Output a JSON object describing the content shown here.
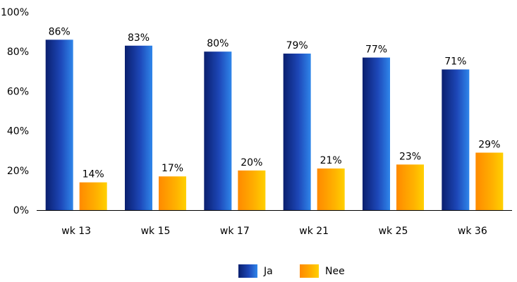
{
  "chart_data": {
    "type": "bar",
    "categories": [
      "wk 13",
      "wk 15",
      "wk 17",
      "wk 21",
      "wk 25",
      "wk 36"
    ],
    "series": [
      {
        "name": "Ja",
        "values": [
          86,
          83,
          80,
          79,
          77,
          71
        ],
        "labels": [
          "86%",
          "83%",
          "80%",
          "79%",
          "77%",
          "71%"
        ],
        "color": "#1f4fbf"
      },
      {
        "name": "Nee",
        "values": [
          14,
          17,
          20,
          21,
          23,
          29
        ],
        "labels": [
          "14%",
          "17%",
          "20%",
          "21%",
          "23%",
          "29%"
        ],
        "color": "#ffa500"
      }
    ],
    "yticks": [
      "0%",
      "20%",
      "40%",
      "60%",
      "80%",
      "100%"
    ],
    "ylim": [
      0,
      100
    ],
    "grid": false,
    "legend": "bottom"
  }
}
